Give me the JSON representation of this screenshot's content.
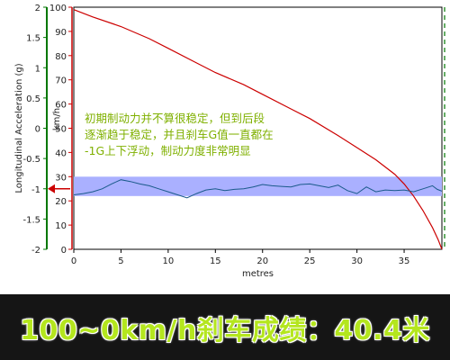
{
  "chart_data": {
    "type": "line",
    "title": "",
    "xlabel": "metres",
    "xlim": [
      0,
      39
    ],
    "x_ticks": [
      0,
      5,
      10,
      15,
      20,
      25,
      30,
      35
    ],
    "left_axis": {
      "label": "Longitudinal Acceleration (g)",
      "ylim": [
        -2,
        2
      ],
      "ticks": [
        2,
        1.5,
        1,
        0.5,
        0,
        -0.5,
        -1,
        -1.5,
        -2
      ],
      "tick_labels": [
        "2",
        "1.5",
        "1",
        "0.5",
        "0",
        "-0.5",
        "-1",
        "-1.5",
        "-2"
      ],
      "color": "#007700",
      "marker_value": -1
    },
    "right_axis": {
      "label": "km/h",
      "ylim": [
        0,
        100
      ],
      "ticks": [
        100,
        90,
        80,
        70,
        60,
        50,
        40,
        30,
        20,
        10,
        0
      ],
      "color": "#cc0000"
    },
    "highlight_band": {
      "axis": "right",
      "from": 22,
      "to": 30,
      "color": "#aab0ff"
    },
    "series": [
      {
        "axis": "right",
        "color": "#cc0000",
        "x": [
          0,
          2,
          5,
          8,
          10,
          13,
          15,
          18,
          20,
          23,
          25,
          28,
          30,
          32,
          34,
          35,
          36,
          37,
          38,
          38.6,
          39
        ],
        "values": [
          99,
          96,
          92,
          87,
          83,
          77,
          73,
          68,
          64,
          58,
          54,
          47,
          42,
          37,
          31,
          27,
          22,
          16,
          9,
          4,
          0
        ]
      },
      {
        "axis": "left",
        "color": "#1a5a8a",
        "x": [
          0,
          1,
          2,
          3,
          4,
          5,
          6,
          7,
          8,
          9,
          10,
          11,
          12,
          13,
          14,
          15,
          16,
          17,
          18,
          19,
          20,
          21,
          22,
          23,
          24,
          25,
          26,
          27,
          28,
          29,
          30,
          31,
          32,
          33,
          34,
          35,
          36,
          37,
          38,
          38.5,
          39
        ],
        "values": [
          -1.1,
          -1.08,
          -1.05,
          -1.0,
          -0.92,
          -0.85,
          -0.88,
          -0.92,
          -0.95,
          -1.0,
          -1.05,
          -1.1,
          -1.15,
          -1.08,
          -1.02,
          -1.0,
          -1.03,
          -1.01,
          -1.0,
          -0.97,
          -0.93,
          -0.95,
          -0.96,
          -0.97,
          -0.93,
          -0.92,
          -0.95,
          -0.98,
          -0.94,
          -1.03,
          -1.08,
          -0.97,
          -1.05,
          -1.02,
          -1.03,
          -1.02,
          -1.05,
          -1.0,
          -0.95,
          -1.01,
          -1.04
        ]
      }
    ],
    "annotation": [
      "初期制动力并不算很稳定，但到后段",
      "逐渐趋于稳定，并且刹车G值一直都在",
      "-1G上下浮动，制动力度非常明显"
    ]
  },
  "banner": {
    "text": "100~0km/h刹车成绩：40.4米",
    "color": "#b4e61e"
  }
}
